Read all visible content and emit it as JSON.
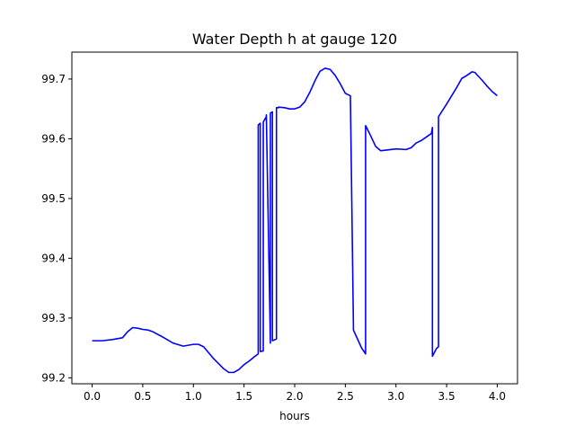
{
  "chart_data": {
    "type": "line",
    "title": "Water Depth h at gauge 120",
    "xlabel": "hours",
    "ylabel": "",
    "xlim": [
      -0.2,
      4.2
    ],
    "ylim": [
      99.19,
      99.745
    ],
    "xticks": [
      0.0,
      0.5,
      1.0,
      1.5,
      2.0,
      2.5,
      3.0,
      3.5,
      4.0
    ],
    "xtick_labels": [
      "0.0",
      "0.5",
      "1.0",
      "1.5",
      "2.0",
      "2.5",
      "3.0",
      "3.5",
      "4.0"
    ],
    "yticks": [
      99.2,
      99.3,
      99.4,
      99.5,
      99.6,
      99.7
    ],
    "ytick_labels": [
      "99.2",
      "99.3",
      "99.4",
      "99.5",
      "99.6",
      "99.7"
    ],
    "grid": false,
    "line_color": "#0000ff",
    "series": [
      {
        "x": [
          0.0,
          0.1,
          0.2,
          0.3,
          0.35,
          0.4,
          0.45,
          0.5,
          0.55,
          0.6,
          0.7,
          0.8,
          0.9,
          1.0,
          1.05,
          1.1,
          1.2,
          1.3,
          1.35,
          1.4,
          1.45,
          1.5,
          1.55,
          1.6,
          1.64,
          1.64,
          1.66,
          1.66,
          1.69,
          1.69,
          1.72,
          1.72,
          1.76,
          1.76,
          1.78,
          1.78,
          1.82,
          1.82,
          1.84,
          1.84,
          1.9,
          1.95,
          2.0,
          2.05,
          2.1,
          2.15,
          2.2,
          2.25,
          2.3,
          2.35,
          2.4,
          2.45,
          2.5,
          2.55,
          2.58,
          2.58,
          2.62,
          2.66,
          2.7,
          2.7,
          2.75,
          2.8,
          2.85,
          2.9,
          3.0,
          3.1,
          3.15,
          3.2,
          3.25,
          3.3,
          3.35,
          3.36,
          3.36,
          3.4,
          3.42,
          3.42,
          3.5,
          3.6,
          3.65,
          3.7,
          3.75,
          3.78,
          3.8,
          3.85,
          3.9,
          3.95,
          4.0
        ],
        "y": [
          99.262,
          99.262,
          99.264,
          99.267,
          99.277,
          99.284,
          99.283,
          99.281,
          99.28,
          99.277,
          99.268,
          99.258,
          99.253,
          99.256,
          99.256,
          99.252,
          99.232,
          99.215,
          99.209,
          99.209,
          99.214,
          99.222,
          99.228,
          99.235,
          99.24,
          99.623,
          99.626,
          99.244,
          99.245,
          99.628,
          99.637,
          99.64,
          99.258,
          99.643,
          99.645,
          99.262,
          99.265,
          99.652,
          99.652,
          99.653,
          99.652,
          99.65,
          99.65,
          99.653,
          99.662,
          99.678,
          99.697,
          99.713,
          99.718,
          99.716,
          99.706,
          99.692,
          99.676,
          99.672,
          99.287,
          99.28,
          99.265,
          99.25,
          99.24,
          99.622,
          99.605,
          99.587,
          99.58,
          99.581,
          99.583,
          99.582,
          99.585,
          99.593,
          99.597,
          99.603,
          99.609,
          99.619,
          99.236,
          99.249,
          99.252,
          99.637,
          99.658,
          99.686,
          99.701,
          99.706,
          99.712,
          99.711,
          99.707,
          99.698,
          99.688,
          99.679,
          99.672
        ]
      }
    ]
  }
}
